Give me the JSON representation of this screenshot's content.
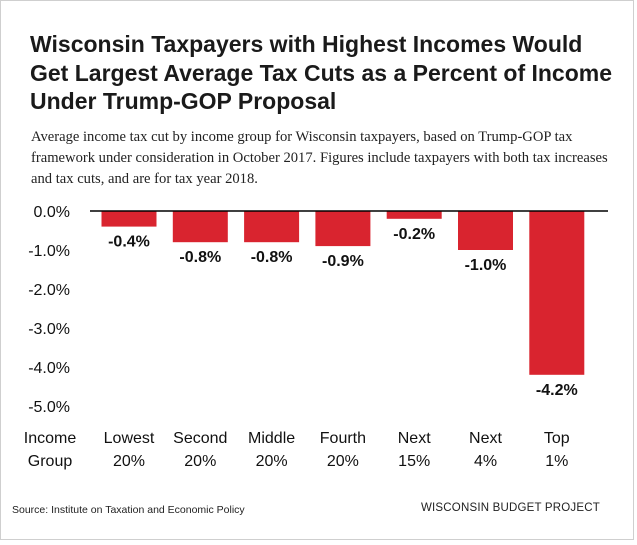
{
  "title": "Wisconsin Taxpayers with Highest Incomes Would Get Largest Average Tax Cuts as a Percent of Income Under Trump-GOP Proposal",
  "subtitle": "Average income tax cut by income group for Wisconsin taxpayers, based on Trump-GOP tax framework under consideration in October 2017. Figures include taxpayers with both tax increases and tax cuts, and are for tax year 2018.",
  "source": "Source: Institute on Taxation and Economic Policy",
  "brand": "WISCONSIN BUDGET PROJECT",
  "colors": {
    "bar": "#d9242f",
    "axis": "#000000",
    "text": "#111111"
  },
  "chart_data": {
    "type": "bar",
    "category_axis_label": [
      "Income",
      "Group"
    ],
    "categories": [
      [
        "Lowest",
        "20%"
      ],
      [
        "Second",
        "20%"
      ],
      [
        "Middle",
        "20%"
      ],
      [
        "Fourth",
        "20%"
      ],
      [
        "Next",
        "15%"
      ],
      [
        "Next",
        "4%"
      ],
      [
        "Top",
        "1%"
      ]
    ],
    "values": [
      -0.4,
      -0.8,
      -0.8,
      -0.9,
      -0.2,
      -1.0,
      -4.2
    ],
    "data_labels": [
      "-0.4%",
      "-0.8%",
      "-0.8%",
      "-0.9%",
      "-0.2%",
      "-1.0%",
      "-4.2%"
    ],
    "y_ticks": [
      "0.0%",
      "-1.0%",
      "-2.0%",
      "-3.0%",
      "-4.0%",
      "-5.0%"
    ],
    "y_tick_values": [
      0,
      -1,
      -2,
      -3,
      -4,
      -5
    ],
    "ylim": [
      -5,
      0
    ],
    "grid": false,
    "legend": "none"
  }
}
